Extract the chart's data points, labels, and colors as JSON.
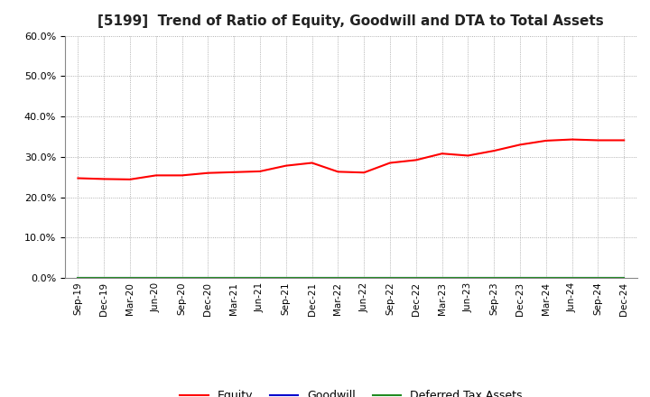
{
  "title": "[5199]  Trend of Ratio of Equity, Goodwill and DTA to Total Assets",
  "x_labels": [
    "Sep-19",
    "Dec-19",
    "Mar-20",
    "Jun-20",
    "Sep-20",
    "Dec-20",
    "Mar-21",
    "Jun-21",
    "Sep-21",
    "Dec-21",
    "Mar-22",
    "Jun-22",
    "Sep-22",
    "Dec-22",
    "Mar-23",
    "Jun-23",
    "Sep-23",
    "Dec-23",
    "Mar-24",
    "Jun-24",
    "Sep-24",
    "Dec-24"
  ],
  "equity": [
    0.247,
    0.245,
    0.244,
    0.254,
    0.254,
    0.26,
    0.262,
    0.264,
    0.278,
    0.285,
    0.263,
    0.261,
    0.285,
    0.292,
    0.308,
    0.303,
    0.315,
    0.33,
    0.34,
    0.343,
    0.341,
    0.341
  ],
  "goodwill": [
    0.0,
    0.0,
    0.0,
    0.0,
    0.0,
    0.0,
    0.0,
    0.0,
    0.0,
    0.0,
    0.0,
    0.0,
    0.0,
    0.0,
    0.0,
    0.0,
    0.0,
    0.0,
    0.0,
    0.0,
    0.0,
    0.0
  ],
  "deferred_tax_assets": [
    0.0,
    0.0,
    0.0,
    0.0,
    0.0,
    0.0,
    0.0,
    0.0,
    0.0,
    0.0,
    0.0,
    0.0,
    0.0,
    0.0,
    0.0,
    0.0,
    0.0,
    0.0,
    0.0,
    0.0,
    0.0,
    0.0
  ],
  "equity_color": "#ff0000",
  "goodwill_color": "#0000cd",
  "dta_color": "#228b22",
  "ylim": [
    0.0,
    0.6
  ],
  "yticks": [
    0.0,
    0.1,
    0.2,
    0.3,
    0.4,
    0.5,
    0.6
  ],
  "background_color": "#ffffff",
  "grid_color": "#999999",
  "title_fontsize": 11,
  "legend_labels": [
    "Equity",
    "Goodwill",
    "Deferred Tax Assets"
  ]
}
